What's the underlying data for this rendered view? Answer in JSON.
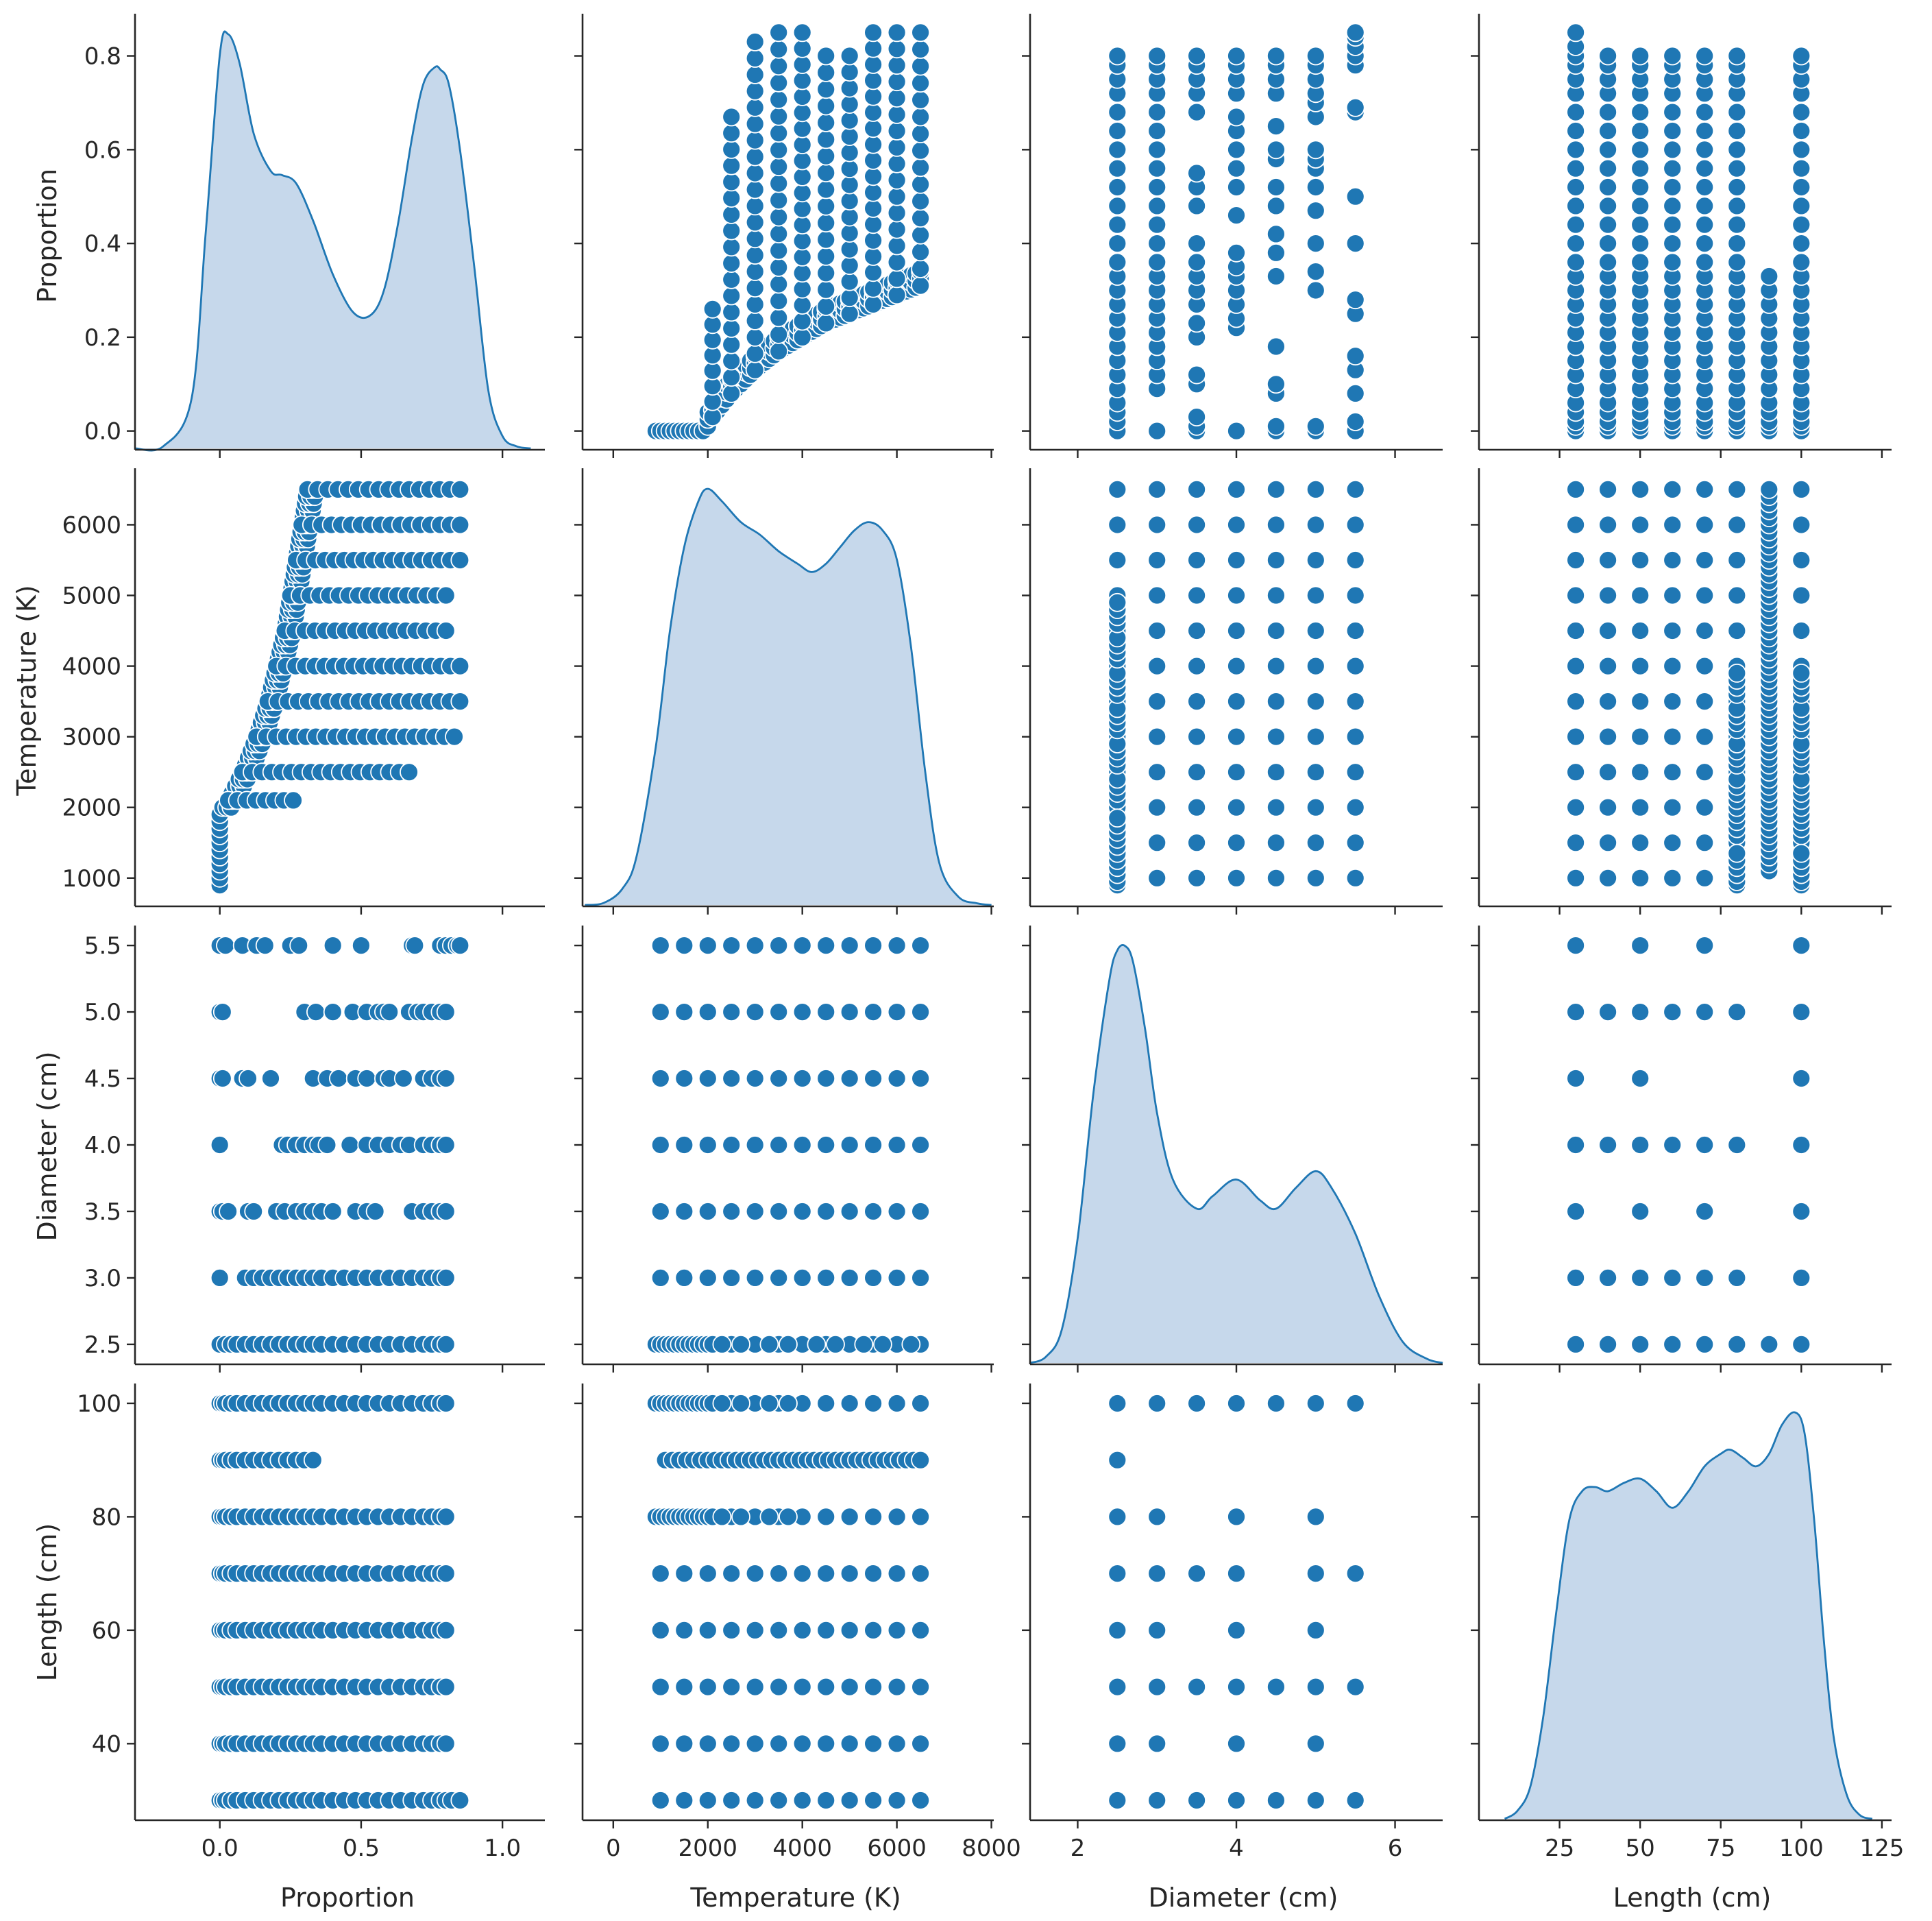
{
  "figure": {
    "kind": "seaborn pairplot",
    "accent_color": "#1f77b4",
    "kde_fill_color": "#c6d8eb",
    "marker_edge_color": "#ffffff"
  },
  "chart_data": {
    "type": "scatter",
    "title": "",
    "variables": [
      {
        "key": "proportion",
        "label": "Proportion",
        "xlim": [
          -0.3,
          1.15
        ],
        "ylim": [
          -0.04,
          0.89
        ],
        "xticks": [
          0.0,
          0.5,
          1.0
        ],
        "xtick_labels": [
          "0.0",
          "0.5",
          "1.0"
        ],
        "yticks": [
          0.0,
          0.2,
          0.4,
          0.6,
          0.8
        ],
        "ytick_labels": [
          "0.0",
          "0.2",
          "0.4",
          "0.6",
          "0.8"
        ]
      },
      {
        "key": "temperature",
        "label": "Temperature (K)",
        "xlim": [
          -650,
          8050
        ],
        "ylim": [
          600,
          6800
        ],
        "xticks": [
          0,
          2000,
          4000,
          6000,
          8000
        ],
        "xtick_labels": [
          "0",
          "2000",
          "4000",
          "6000",
          "8000"
        ],
        "yticks": [
          1000,
          2000,
          3000,
          4000,
          5000,
          6000
        ],
        "ytick_labels": [
          "1000",
          "2000",
          "3000",
          "4000",
          "5000",
          "6000"
        ]
      },
      {
        "key": "diameter",
        "label": "Diameter (cm)",
        "xlim": [
          1.4,
          6.6
        ],
        "ylim": [
          2.35,
          5.65
        ],
        "xticks": [
          2,
          4,
          6
        ],
        "xtick_labels": [
          "2",
          "4",
          "6"
        ],
        "yticks": [
          2.5,
          3.0,
          3.5,
          4.0,
          4.5,
          5.0,
          5.5
        ],
        "ytick_labels": [
          "2.5",
          "3.0",
          "3.5",
          "4.0",
          "4.5",
          "5.0",
          "5.5"
        ]
      },
      {
        "key": "length",
        "label": "Length (cm)",
        "xlim": [
          0,
          128
        ],
        "ylim": [
          26.5,
          103.5
        ],
        "xticks": [
          25,
          50,
          75,
          100,
          125
        ],
        "xtick_labels": [
          "25",
          "50",
          "75",
          "100",
          "125"
        ],
        "yticks": [
          40,
          60,
          80,
          100
        ],
        "ytick_labels": [
          "40",
          "60",
          "80",
          "100"
        ]
      }
    ],
    "kde": {
      "proportion": {
        "x": [
          -0.3,
          -0.2,
          -0.1,
          -0.05,
          0.0,
          0.03,
          0.07,
          0.12,
          0.18,
          0.22,
          0.27,
          0.33,
          0.4,
          0.47,
          0.53,
          0.58,
          0.63,
          0.68,
          0.72,
          0.76,
          0.78,
          0.81,
          0.85,
          0.9,
          0.95,
          1.0,
          1.05,
          1.1
        ],
        "y": [
          0.0,
          0.005,
          0.12,
          0.52,
          0.95,
          1.0,
          0.93,
          0.76,
          0.67,
          0.66,
          0.64,
          0.55,
          0.42,
          0.33,
          0.32,
          0.38,
          0.54,
          0.75,
          0.88,
          0.92,
          0.915,
          0.88,
          0.72,
          0.44,
          0.14,
          0.03,
          0.005,
          0.0
        ]
      },
      "temperature": {
        "x": [
          -600,
          -200,
          200,
          500,
          900,
          1200,
          1500,
          1800,
          2000,
          2300,
          2700,
          3100,
          3500,
          3900,
          4200,
          4500,
          4800,
          5100,
          5400,
          5700,
          6000,
          6300,
          6600,
          6900,
          7300,
          7700,
          8000
        ],
        "y": [
          0.0,
          0.005,
          0.04,
          0.12,
          0.38,
          0.66,
          0.86,
          0.97,
          1.0,
          0.97,
          0.92,
          0.89,
          0.85,
          0.82,
          0.8,
          0.82,
          0.86,
          0.9,
          0.92,
          0.9,
          0.83,
          0.62,
          0.32,
          0.1,
          0.02,
          0.004,
          0.0
        ]
      },
      "diameter": {
        "x": [
          1.4,
          1.6,
          1.8,
          2.0,
          2.2,
          2.4,
          2.5,
          2.6,
          2.7,
          2.85,
          3.0,
          3.2,
          3.5,
          3.7,
          4.0,
          4.3,
          4.5,
          4.75,
          5.0,
          5.2,
          5.5,
          5.8,
          6.1,
          6.4,
          6.6
        ],
        "y": [
          0.0,
          0.015,
          0.08,
          0.3,
          0.65,
          0.92,
          0.99,
          1.0,
          0.96,
          0.8,
          0.6,
          0.44,
          0.37,
          0.4,
          0.44,
          0.39,
          0.37,
          0.42,
          0.46,
          0.42,
          0.31,
          0.16,
          0.05,
          0.01,
          0.0
        ]
      },
      "length": {
        "x": [
          8,
          12,
          16,
          20,
          24,
          28,
          32,
          36,
          40,
          45,
          50,
          55,
          60,
          65,
          70,
          75,
          78,
          82,
          86,
          90,
          94,
          98,
          101,
          104,
          107,
          110,
          114,
          118,
          122
        ],
        "y": [
          0.0,
          0.02,
          0.08,
          0.25,
          0.5,
          0.72,
          0.79,
          0.8,
          0.79,
          0.81,
          0.82,
          0.79,
          0.75,
          0.79,
          0.85,
          0.88,
          0.89,
          0.87,
          0.85,
          0.88,
          0.95,
          0.98,
          0.93,
          0.72,
          0.43,
          0.2,
          0.06,
          0.01,
          0.0
        ]
      }
    },
    "distinct_values": {
      "proportion": [
        0.0,
        0.01,
        0.02,
        0.04,
        0.06,
        0.09,
        0.12,
        0.15,
        0.18,
        0.21,
        0.24,
        0.27,
        0.3,
        0.33,
        0.36,
        0.4,
        0.44,
        0.48,
        0.52,
        0.56,
        0.6,
        0.64,
        0.68,
        0.72,
        0.75,
        0.78,
        0.8,
        0.82,
        0.85
      ],
      "temperature": [
        900,
        1000,
        1100,
        1200,
        1300,
        1400,
        1500,
        1600,
        1700,
        1800,
        1900,
        2000,
        2100,
        2500,
        3000,
        3500,
        4000,
        4500,
        5000,
        5500,
        6000,
        6500
      ],
      "temperature_coarse": [
        1000,
        1500,
        2000,
        2500,
        3000,
        3500,
        4000,
        4500,
        5000,
        5500,
        6000,
        6500
      ],
      "diameter": [
        2.5,
        3.0,
        3.5,
        4.0,
        4.5,
        5.0,
        5.5
      ],
      "length": [
        30,
        40,
        50,
        60,
        70,
        80,
        90,
        100
      ]
    },
    "length_diameter_pairs": [
      [
        30,
        2.5
      ],
      [
        30,
        3.0
      ],
      [
        30,
        3.5
      ],
      [
        30,
        4.0
      ],
      [
        30,
        4.5
      ],
      [
        30,
        5.0
      ],
      [
        30,
        5.5
      ],
      [
        40,
        2.5
      ],
      [
        40,
        3.0
      ],
      [
        40,
        4.0
      ],
      [
        40,
        5.0
      ],
      [
        50,
        2.5
      ],
      [
        50,
        3.0
      ],
      [
        50,
        3.5
      ],
      [
        50,
        4.0
      ],
      [
        50,
        4.5
      ],
      [
        50,
        5.0
      ],
      [
        50,
        5.5
      ],
      [
        60,
        2.5
      ],
      [
        60,
        3.0
      ],
      [
        60,
        4.0
      ],
      [
        60,
        5.0
      ],
      [
        70,
        2.5
      ],
      [
        70,
        3.0
      ],
      [
        70,
        3.5
      ],
      [
        70,
        4.0
      ],
      [
        70,
        5.0
      ],
      [
        70,
        5.5
      ],
      [
        80,
        2.5
      ],
      [
        80,
        3.0
      ],
      [
        80,
        4.0
      ],
      [
        80,
        5.0
      ],
      [
        90,
        2.5
      ],
      [
        100,
        2.5
      ],
      [
        100,
        3.0
      ],
      [
        100,
        3.5
      ],
      [
        100,
        4.0
      ],
      [
        100,
        4.5
      ],
      [
        100,
        5.0
      ],
      [
        100,
        5.5
      ]
    ],
    "proportion_by_length_max": {
      "30": 0.85,
      "40": 0.8,
      "50": 0.8,
      "60": 0.8,
      "70": 0.8,
      "80": 0.8,
      "90": 0.34,
      "100": 0.8
    },
    "proportion_by_diameter": {
      "2.5": [
        0.0,
        0.02,
        0.04,
        0.06,
        0.09,
        0.12,
        0.15,
        0.18,
        0.21,
        0.24,
        0.27,
        0.3,
        0.33,
        0.36,
        0.4,
        0.44,
        0.48,
        0.52,
        0.56,
        0.6,
        0.64,
        0.68,
        0.72,
        0.75,
        0.78,
        0.8
      ],
      "3.0": [
        0.0,
        0.09,
        0.12,
        0.15,
        0.18,
        0.21,
        0.24,
        0.27,
        0.3,
        0.33,
        0.36,
        0.4,
        0.44,
        0.48,
        0.52,
        0.56,
        0.6,
        0.64,
        0.68,
        0.72,
        0.75,
        0.78,
        0.8
      ],
      "3.5": [
        0.0,
        0.01,
        0.03,
        0.1,
        0.12,
        0.2,
        0.23,
        0.27,
        0.3,
        0.33,
        0.36,
        0.4,
        0.48,
        0.52,
        0.55,
        0.68,
        0.72,
        0.75,
        0.78,
        0.8
      ],
      "4.0": [
        0.0,
        0.22,
        0.24,
        0.27,
        0.3,
        0.33,
        0.35,
        0.38,
        0.46,
        0.52,
        0.56,
        0.6,
        0.64,
        0.67,
        0.72,
        0.75,
        0.78,
        0.8
      ],
      "4.5": [
        0.0,
        0.01,
        0.08,
        0.1,
        0.18,
        0.33,
        0.38,
        0.42,
        0.48,
        0.52,
        0.58,
        0.6,
        0.65,
        0.72,
        0.75,
        0.78,
        0.8
      ],
      "5.0": [
        0.0,
        0.01,
        0.3,
        0.34,
        0.4,
        0.47,
        0.52,
        0.56,
        0.58,
        0.6,
        0.67,
        0.7,
        0.72,
        0.75,
        0.78,
        0.8
      ],
      "5.5": [
        0.0,
        0.02,
        0.08,
        0.13,
        0.16,
        0.25,
        0.28,
        0.4,
        0.5,
        0.68,
        0.69,
        0.78,
        0.8,
        0.82,
        0.84,
        0.85
      ]
    },
    "proportion_temperature_upper_steps": [
      {
        "T": 2100,
        "pmax": 0.26
      },
      {
        "T": 2500,
        "pmax": 0.67
      },
      {
        "T": 3000,
        "pmax": 0.83
      },
      {
        "T": 3500,
        "pmax": 0.85
      },
      {
        "T": 4000,
        "pmax": 0.85
      },
      {
        "T": 4500,
        "pmax": 0.8
      },
      {
        "T": 5000,
        "pmax": 0.8
      },
      {
        "T": 5500,
        "pmax": 0.85
      },
      {
        "T": 6000,
        "pmax": 0.85
      },
      {
        "T": 6500,
        "pmax": 0.85
      }
    ],
    "proportion_temperature_lower_envelope": {
      "T": [
        900,
        1000,
        1500,
        1900,
        2000,
        2100,
        2500,
        3000,
        3500,
        4000,
        4500,
        5000,
        5500,
        6000,
        6500
      ],
      "p": [
        0.0,
        0.0,
        0.0,
        0.0,
        0.01,
        0.03,
        0.08,
        0.13,
        0.17,
        0.2,
        0.23,
        0.25,
        0.27,
        0.29,
        0.31
      ]
    }
  }
}
